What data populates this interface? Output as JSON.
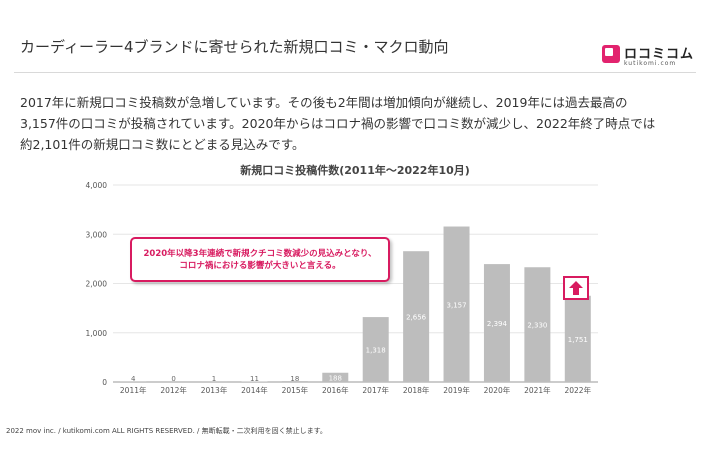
{
  "header": {
    "title": "カーディーラー4ブランドに寄せられた新規口コミ・マクロ動向",
    "logo_text": "ロコミコム",
    "logo_sub": "kutikomi.com"
  },
  "body": {
    "lines": [
      "2017年に新規口コミ投稿数が急増しています。その後も2年間は増加傾向が継続し、2019年には過去最高の",
      "3,157件の口コミが投稿されています。2020年からはコロナ禍の影響で口コミ数が減少し、2022年終了時点では",
      "約2,101件の新規口コミ数にとどまる見込みです。"
    ]
  },
  "callout": {
    "line1": "2020年以降3年連続で新規クチコミ数減少の見込みとなり、",
    "line2": "コロナ禍における影響が大きいと言える。"
  },
  "footer": "2022 mov inc. / kutikomi.com ALL RIGHTS RESERVED. / 無断転載・二次利用を固く禁止します。",
  "colors": {
    "bar": "#bdbdbd",
    "bar_label": "#ffffff",
    "accent": "#d81b60",
    "grid": "#e6e6e6"
  },
  "chart_data": {
    "type": "bar",
    "title": "新規口コミ投稿件数(2011年〜2022年10月)",
    "categories": [
      "2011年",
      "2012年",
      "2013年",
      "2014年",
      "2015年",
      "2016年",
      "2017年",
      "2018年",
      "2019年",
      "2020年",
      "2021年",
      "2022年"
    ],
    "values": [
      4,
      0,
      1,
      11,
      18,
      188,
      1318,
      2656,
      3157,
      2394,
      2330,
      1751
    ],
    "value_labels": [
      "4",
      "0",
      "1",
      "11",
      "18",
      "188",
      "1,318",
      "2,656",
      "3,157",
      "2,394",
      "2,330",
      "1,751"
    ],
    "ylim": [
      0,
      4000
    ],
    "yticks": [
      0,
      1000,
      2000,
      3000,
      4000
    ],
    "ytick_labels": [
      "0",
      "1,000",
      "2,000",
      "3,000",
      "4,000"
    ],
    "grid": true
  }
}
